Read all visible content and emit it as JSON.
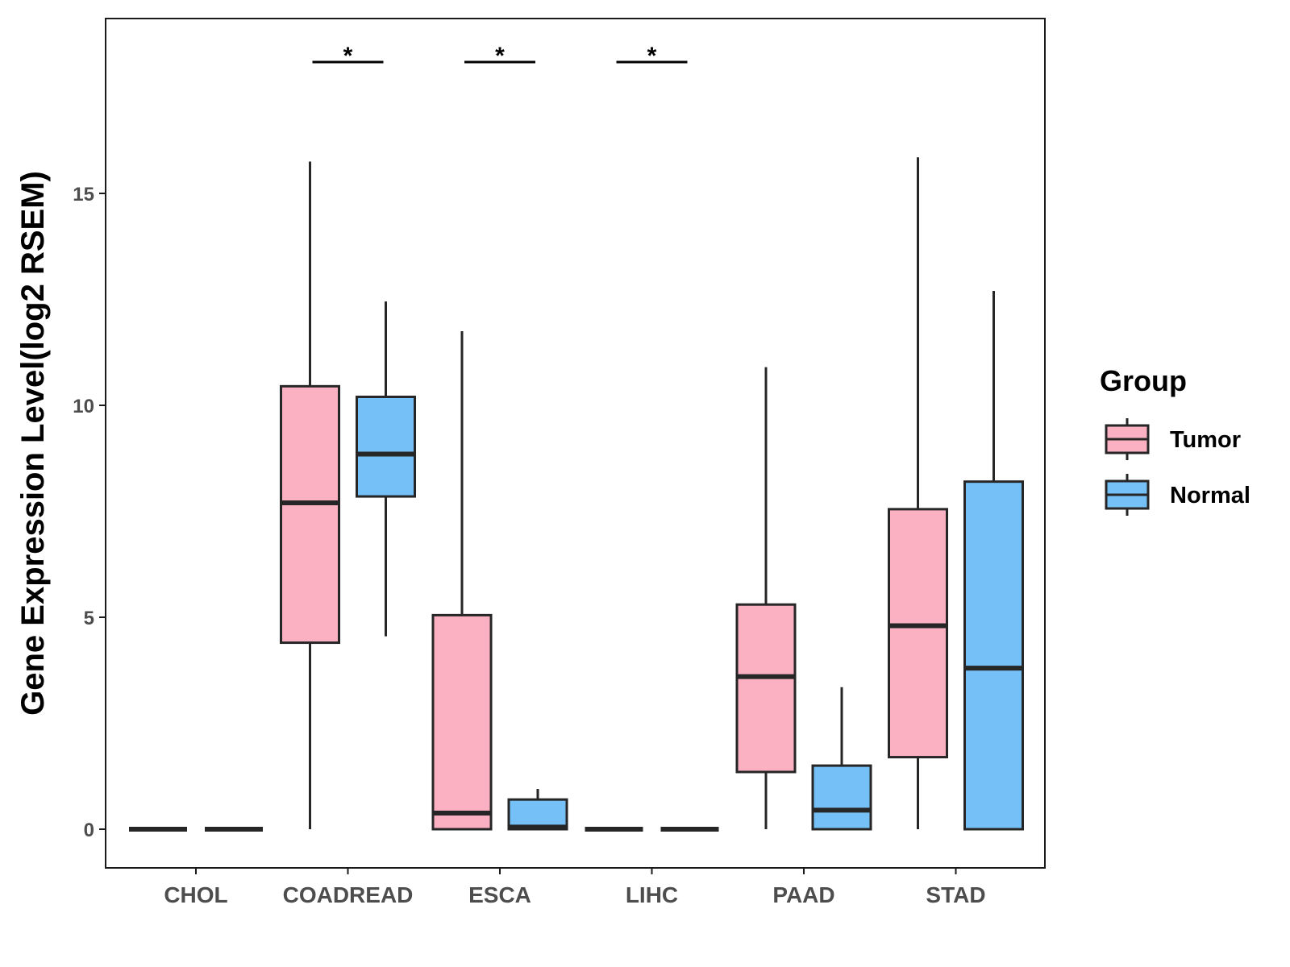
{
  "chart_data": {
    "type": "boxplot",
    "title": "",
    "xlabel": "",
    "ylabel": "Gene Expression Level(log2 RSEM)",
    "ylim": [
      -0.9,
      19.1
    ],
    "yticks": [
      0,
      5,
      10,
      15
    ],
    "ytick_labels": [
      "0",
      "5",
      "10",
      "15"
    ],
    "categories": [
      "CHOL",
      "COADREAD",
      "ESCA",
      "LIHC",
      "PAAD",
      "STAD"
    ],
    "grid": false,
    "legend": {
      "title": "Group",
      "position": "right",
      "entries": [
        {
          "name": "Tumor",
          "color": "#FBB1C2"
        },
        {
          "name": "Normal",
          "color": "#75C0F7"
        }
      ]
    },
    "colors": {
      "box_stroke": "#262626",
      "axis": "#1a1a1a",
      "tick_text": "#4d4d4d"
    },
    "series": [
      {
        "name": "Tumor",
        "boxes": [
          {
            "category": "CHOL",
            "min": 0,
            "q1": 0,
            "median": 0,
            "q3": 0,
            "max": 0
          },
          {
            "category": "COADREAD",
            "min": 0,
            "q1": 4.4,
            "median": 7.7,
            "q3": 10.45,
            "max": 15.75
          },
          {
            "category": "ESCA",
            "min": 0,
            "q1": 0,
            "median": 0.38,
            "q3": 5.05,
            "max": 11.75
          },
          {
            "category": "LIHC",
            "min": 0,
            "q1": 0,
            "median": 0,
            "q3": 0,
            "max": 0
          },
          {
            "category": "PAAD",
            "min": 0,
            "q1": 1.35,
            "median": 3.6,
            "q3": 5.3,
            "max": 10.9
          },
          {
            "category": "STAD",
            "min": 0,
            "q1": 1.7,
            "median": 4.8,
            "q3": 7.55,
            "max": 15.85
          }
        ]
      },
      {
        "name": "Normal",
        "boxes": [
          {
            "category": "CHOL",
            "min": 0,
            "q1": 0,
            "median": 0,
            "q3": 0,
            "max": 0
          },
          {
            "category": "COADREAD",
            "min": 4.55,
            "q1": 7.85,
            "median": 8.85,
            "q3": 10.2,
            "max": 12.45
          },
          {
            "category": "ESCA",
            "min": 0,
            "q1": 0,
            "median": 0.05,
            "q3": 0.7,
            "max": 0.95
          },
          {
            "category": "LIHC",
            "min": 0,
            "q1": 0,
            "median": 0,
            "q3": 0,
            "max": 0
          },
          {
            "category": "PAAD",
            "min": 0,
            "q1": 0,
            "median": 0.45,
            "q3": 1.5,
            "max": 3.35
          },
          {
            "category": "STAD",
            "min": 0,
            "q1": 0,
            "median": 3.8,
            "q3": 8.2,
            "max": 12.7
          }
        ]
      }
    ],
    "significance": [
      {
        "category": "COADREAD",
        "label": "*",
        "y": 18.1
      },
      {
        "category": "ESCA",
        "label": "*",
        "y": 18.1
      },
      {
        "category": "LIHC",
        "label": "*",
        "y": 18.1
      }
    ]
  }
}
